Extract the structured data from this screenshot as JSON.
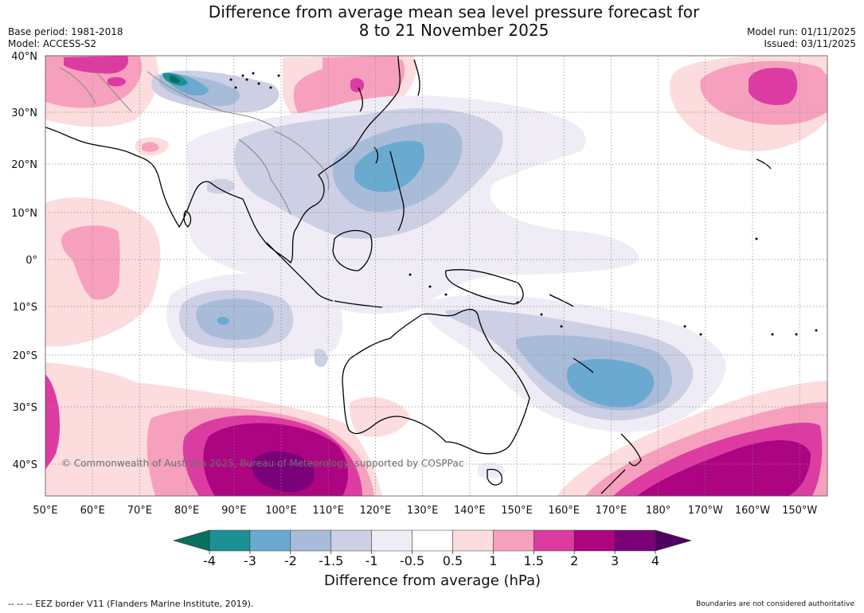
{
  "title": {
    "line1": "Difference from average mean sea level pressure forecast for",
    "line2": "8 to 21 November 2025"
  },
  "meta_left": {
    "base_period": "Base period: 1981-2018",
    "model": "Model: ACCESS-S2"
  },
  "meta_right": {
    "model_run": "Model run: 01/11/2025",
    "issued": "Issued: 03/11/2025"
  },
  "map": {
    "lat_labels": [
      "40°N",
      "30°N",
      "20°N",
      "10°N",
      "0°",
      "10°S",
      "20°S",
      "30°S",
      "40°S"
    ],
    "lon_labels": [
      "50°E",
      "60°E",
      "70°E",
      "80°E",
      "90°E",
      "100°E",
      "110°E",
      "120°E",
      "130°E",
      "140°E",
      "150°E",
      "160°E",
      "170°E",
      "180°",
      "170°W",
      "160°W",
      "150°W"
    ],
    "copyright": "© Commonwealth of Australia 2025, Bureau of Meteorology, supported by COSPPac"
  },
  "colorbar": {
    "title": "Difference from average (hPa)",
    "tick_labels": [
      "-4",
      "-3",
      "-2",
      "-1.5",
      "-1",
      "-0.5",
      "0.5",
      "1",
      "1.5",
      "2",
      "3",
      "4"
    ],
    "colors": {
      "below_min": "#08705f",
      "bins": [
        "#1d9096",
        "#6baad0",
        "#a8bcd9",
        "#cdcfe5",
        "#efecf5",
        "#ffffff",
        "#fcdcdc",
        "#f7a0bd",
        "#dc3ca1",
        "#ad0481",
        "#7b017a"
      ],
      "above_max": "#4f0062"
    }
  },
  "footer": {
    "eez_note": "--  --  -- EEZ border V11 (Flanders Marine Institute, 2019).",
    "boundaries_note": "Boundaries are not considered authoritative"
  }
}
